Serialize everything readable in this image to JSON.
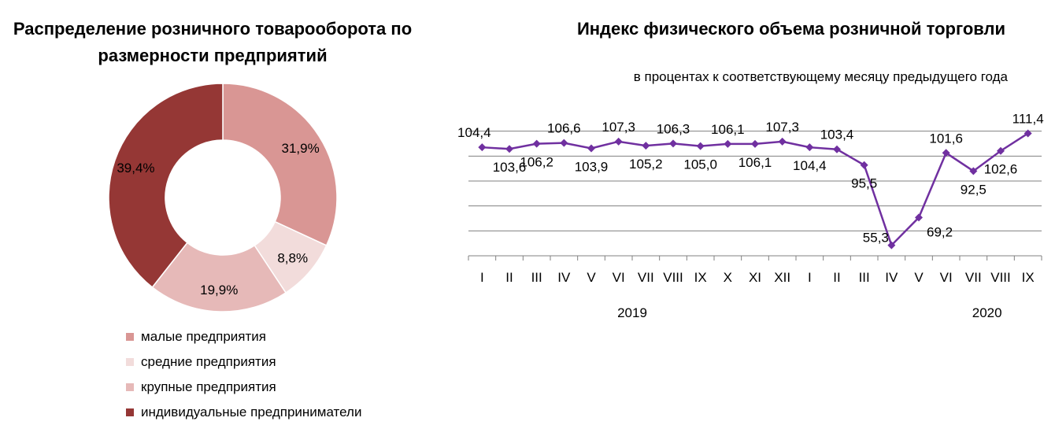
{
  "chart_data": [
    {
      "type": "pie",
      "variant": "donut",
      "title": "Распределение розничного товарооборота по размерности предприятий",
      "categories": [
        "малые предприятия",
        "средние предприятия",
        "крупные предприятия",
        "индивидуальные предприниматели"
      ],
      "values": [
        31.9,
        8.8,
        19.9,
        39.4
      ],
      "value_labels": [
        "31,9%",
        "8,8%",
        "19,9%",
        "39,4%"
      ],
      "colors": [
        "#d99694",
        "#f2dcdb",
        "#e6b9b8",
        "#953735"
      ],
      "legend": "bottom"
    },
    {
      "type": "line",
      "title": "Индекс физического объема розничной торговли",
      "subtitle": "в процентах к соответствующему месяцу предыдущего года",
      "categories": [
        "I",
        "II",
        "III",
        "IV",
        "V",
        "VI",
        "VII",
        "VIII",
        "IX",
        "X",
        "XI",
        "XII",
        "I",
        "II",
        "III",
        "IV",
        "V",
        "VI",
        "VII",
        "VIII",
        "IX"
      ],
      "year_labels": [
        "2019",
        "2020"
      ],
      "values": [
        104.4,
        103.6,
        106.2,
        106.6,
        103.9,
        107.3,
        105.2,
        106.3,
        105.0,
        106.1,
        106.1,
        107.3,
        104.4,
        103.4,
        95.5,
        55.3,
        69.2,
        101.6,
        92.5,
        102.6,
        111.4
      ],
      "value_labels": [
        "104,4",
        "103,6",
        "106,2",
        "106,6",
        "103,9",
        "107,3",
        "105,2",
        "106,3",
        "105,0",
        "106,1",
        "106,1",
        "107,3",
        "104,4",
        "103,4",
        "95,5",
        "55,3",
        "69,2",
        "101,6",
        "92,5",
        "102,6",
        "111,4"
      ],
      "label_pos": [
        "above",
        "below",
        "below",
        "above",
        "below",
        "above",
        "below",
        "above",
        "below",
        "above",
        "below",
        "above",
        "below",
        "above",
        "below",
        "above",
        "right",
        "above",
        "below",
        "below",
        "above"
      ],
      "color": "#7030a0",
      "ylim": [
        50,
        125
      ],
      "grid": true
    }
  ]
}
